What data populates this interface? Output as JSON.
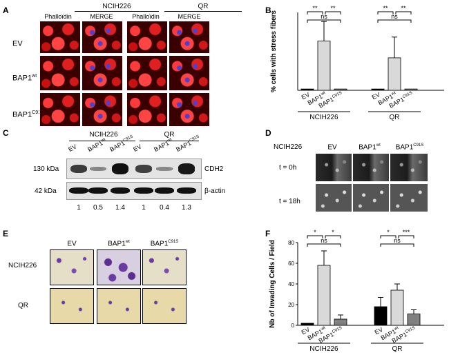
{
  "panelA": {
    "label": "A",
    "groups": [
      "NCIH226",
      "QR"
    ],
    "subheaders": [
      "Phalloïdin",
      "MERGE",
      "Phalloïdin",
      "MERGE"
    ],
    "rows": [
      "EV",
      "BAP1",
      "BAP1"
    ],
    "row_sup": [
      "",
      "wt",
      "C91S"
    ]
  },
  "panelB": {
    "label": "B"
  },
  "panelC": {
    "label": "C",
    "groups": [
      "NCIH226",
      "QR"
    ],
    "lanes": [
      "EV",
      "BAP1",
      "BAP1",
      "EV",
      "BAP1",
      "BAP1"
    ],
    "lane_sup": [
      "",
      "wt",
      "C91S",
      "",
      "wt",
      "C91S"
    ],
    "kda": [
      "130 kDa",
      "42 kDa"
    ],
    "proteins": [
      "CDH2",
      "β-actin"
    ],
    "quant": [
      "1",
      "0.5",
      "1.4",
      "1",
      "0.4",
      "1.3"
    ],
    "cdh2_levels": [
      0.7,
      0.15,
      1.0,
      0.65,
      0.12,
      0.95
    ]
  },
  "panelD": {
    "label": "D",
    "cell": "NCIH226",
    "cols": [
      "EV",
      "BAP1",
      "BAP1"
    ],
    "col_sup": [
      "",
      "wt",
      "C91S"
    ],
    "rows": [
      "t = 0h",
      "t = 18h"
    ]
  },
  "panelE": {
    "label": "E",
    "cols": [
      "EV",
      "BAP1",
      "BAP1"
    ],
    "col_sup": [
      "",
      "wt",
      "C91S"
    ],
    "rows": [
      "NCIH226",
      "QR"
    ]
  },
  "panelF": {
    "label": "F"
  },
  "chart_data": [
    {
      "type": "bar",
      "panel": "B",
      "ylabel": "% cells with stress fibers",
      "ylim": [
        0,
        60
      ],
      "groups": [
        "NCIH226",
        "QR"
      ],
      "categories": [
        "EV",
        "BAP1",
        "BAP1"
      ],
      "category_sup": [
        "",
        "wt",
        "C91S"
      ],
      "values": [
        [
          1,
          38,
          1
        ],
        [
          1,
          25,
          1
        ]
      ],
      "errors": [
        [
          0,
          15,
          0
        ],
        [
          0,
          16,
          0
        ]
      ],
      "colors": [
        "#000000",
        "#d9d9d9",
        "#808080"
      ],
      "significance": [
        [
          "**",
          "ns",
          "**"
        ],
        [
          "**",
          "ns",
          "**"
        ]
      ]
    },
    {
      "type": "bar",
      "panel": "F",
      "ylabel": "Nb of Invading Cells / Field",
      "ylim": [
        0,
        80
      ],
      "yticks": [
        "0",
        "20",
        "40",
        "60",
        "80"
      ],
      "groups": [
        "NCIH226",
        "QR"
      ],
      "categories": [
        "EV",
        "BAP1",
        "BAP1"
      ],
      "category_sup": [
        "",
        "wt",
        "C91S"
      ],
      "values": [
        [
          2,
          58,
          6
        ],
        [
          18,
          34,
          11
        ]
      ],
      "errors": [
        [
          0,
          14,
          4
        ],
        [
          9,
          6,
          4
        ]
      ],
      "colors": [
        "#000000",
        "#d9d9d9",
        "#808080"
      ],
      "significance": [
        [
          "*",
          "ns",
          "*"
        ],
        [
          "*",
          "ns",
          "***"
        ]
      ]
    }
  ]
}
